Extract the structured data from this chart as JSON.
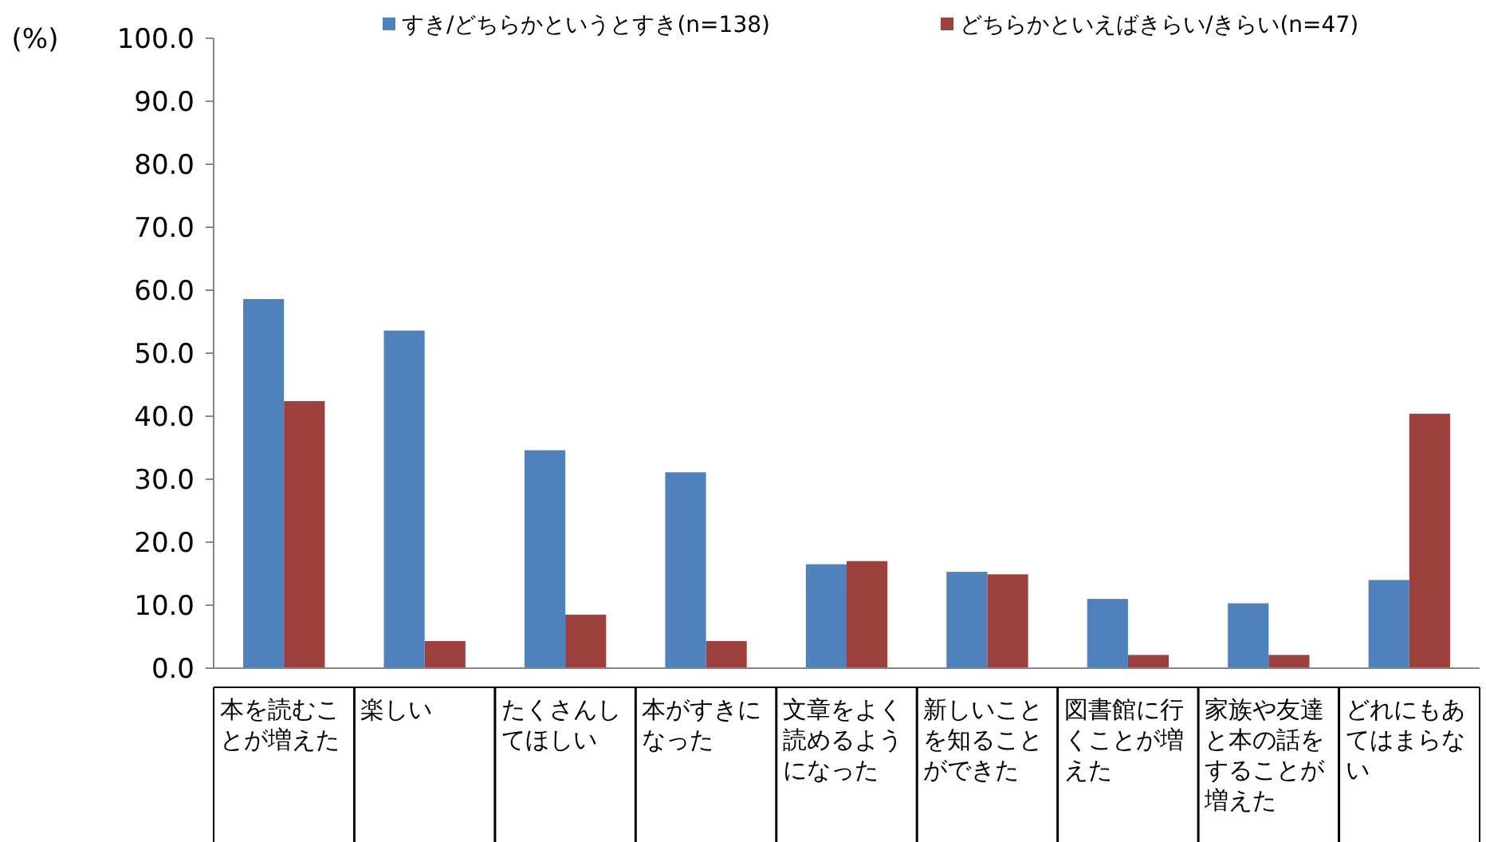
{
  "chart_data": {
    "type": "bar",
    "ylabel": "(%)",
    "categories": [
      "本を読むことが増えた",
      "楽しい",
      "たくさんしてほしい",
      "本がすきになった",
      "文章をよく読めるようになった",
      "新しいことを知ることができた",
      "図書館に行くことが増えた",
      "家族や友達と本の話をすることが増えた",
      "どれにもあてはまらない"
    ],
    "series": [
      {
        "name": "すき/どちらかというとすき(n=138)",
        "color": "#4f81bd",
        "values": [
          58.6,
          53.6,
          34.6,
          31.1,
          16.5,
          15.3,
          11.0,
          10.3,
          14.0
        ]
      },
      {
        "name": "どちらかといえばきらい/きらい(n=47)",
        "color": "#9c413d",
        "values": [
          42.4,
          4.3,
          8.5,
          4.3,
          17.0,
          14.9,
          2.1,
          2.1,
          40.4
        ]
      }
    ],
    "ylim": [
      0,
      100
    ],
    "yticks": [
      {
        "value": 0,
        "label": "0.0"
      },
      {
        "value": 10,
        "label": "10.0"
      },
      {
        "value": 20,
        "label": "20.0"
      },
      {
        "value": 30,
        "label": "30.0"
      },
      {
        "value": 40,
        "label": "40.0"
      },
      {
        "value": 50,
        "label": "50.0"
      },
      {
        "value": 60,
        "label": "60.0"
      },
      {
        "value": 70,
        "label": "70.0"
      },
      {
        "value": 80,
        "label": "80.0"
      },
      {
        "value": 90,
        "label": "90.0"
      },
      {
        "value": 100,
        "label": "100.0"
      }
    ],
    "grid": false,
    "legend": "top"
  }
}
